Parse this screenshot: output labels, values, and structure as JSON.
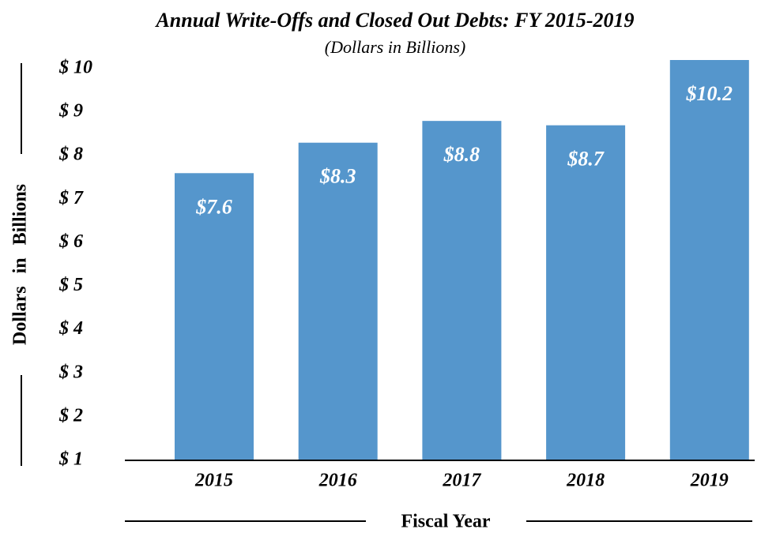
{
  "chart_data": {
    "type": "bar",
    "title": "Annual Write-Offs and Closed Out Debts: FY 2015-2019",
    "subtitle": "(Dollars in Billions)",
    "y_label": "Dollars in Billions",
    "x_label": "Fiscal Year",
    "categories": [
      "2015",
      "2016",
      "2017",
      "2018",
      "2019"
    ],
    "values": [
      7.6,
      8.3,
      8.8,
      8.7,
      10.2
    ],
    "value_labels": [
      "$7.6",
      "$8.3",
      "$8.8",
      "$8.7",
      "$10.2"
    ],
    "color": "#5596cc",
    "ylim": [
      1,
      10.2
    ],
    "yticks": [
      {
        "value": 1,
        "label": "$ 1"
      },
      {
        "value": 2,
        "label": "$ 2"
      },
      {
        "value": 3,
        "label": "$ 3"
      },
      {
        "value": 4,
        "label": "$ 4"
      },
      {
        "value": 5,
        "label": "$ 5"
      },
      {
        "value": 6,
        "label": "$ 6"
      },
      {
        "value": 7,
        "label": "$ 7"
      },
      {
        "value": 8,
        "label": "$ 8"
      },
      {
        "value": 9,
        "label": "$ 9"
      },
      {
        "value": 10,
        "label": "$ 10"
      }
    ],
    "grid": false
  }
}
